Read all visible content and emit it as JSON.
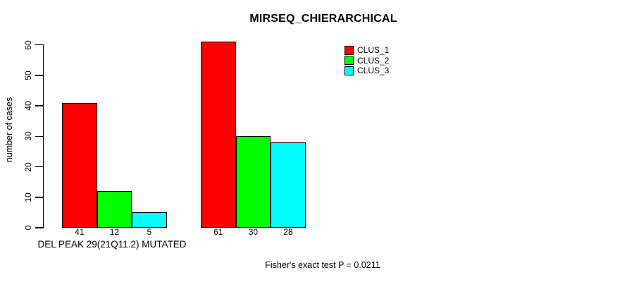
{
  "title": "MIRSEQ_CHIERARCHICAL",
  "y_axis_label": "number of cases",
  "x_group_label": "DEL PEAK 29(21Q11.2) MUTATED",
  "footer_note": "Fisher's exact test P = 0.0211",
  "legend": {
    "items": [
      {
        "label": "CLUS_1",
        "color": "#FF0000"
      },
      {
        "label": "CLUS_2",
        "color": "#00FF00"
      },
      {
        "label": "CLUS_3",
        "color": "#00FFFF"
      }
    ]
  },
  "chart_data": {
    "type": "bar",
    "title": "MIRSEQ_CHIERARCHICAL",
    "categories": [
      "DEL PEAK 29(21Q11.2) MUTATED",
      ""
    ],
    "series": [
      {
        "name": "CLUS_1",
        "color": "#FF0000",
        "values": [
          41,
          61
        ]
      },
      {
        "name": "CLUS_2",
        "color": "#00FF00",
        "values": [
          12,
          30
        ]
      },
      {
        "name": "CLUS_3",
        "color": "#00FFFF",
        "values": [
          5,
          28
        ]
      }
    ],
    "xlabel": "",
    "ylabel": "number of cases",
    "ylim": [
      0,
      60
    ],
    "yticks": [
      0,
      10,
      20,
      30,
      40,
      50,
      60
    ],
    "grid": false,
    "legend_position": "top-right",
    "bar_value_labels": true,
    "annotation": "Fisher's exact test P = 0.0211"
  }
}
